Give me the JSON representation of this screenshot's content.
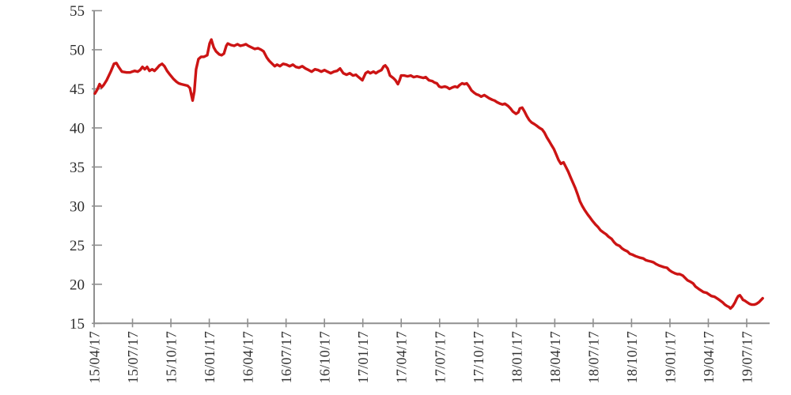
{
  "colors": {
    "line": "#cc1414",
    "axis": "#8f8f8f",
    "tick_label": "#2e2e2e",
    "background": "#ffffff"
  },
  "chart_data": {
    "type": "line",
    "title": "",
    "xlabel": "",
    "ylabel": "",
    "grid": false,
    "legend": "none",
    "x_axis": {
      "tick_labels": [
        "15/04/17",
        "15/07/17",
        "15/10/17",
        "16/01/17",
        "16/04/17",
        "16/07/17",
        "16/10/17",
        "17/01/17",
        "17/04/17",
        "17/07/17",
        "17/10/17",
        "18/01/17",
        "18/04/17",
        "18/07/17",
        "18/10/17",
        "19/01/17",
        "19/04/17",
        "19/07/17"
      ],
      "x_unit": "weeks since 2015-04-17",
      "weeks_per_tick": 13.09
    },
    "y_axis": {
      "min": 15,
      "max": 55,
      "tick_step": 5,
      "tick_labels": [
        "55",
        "50",
        "45",
        "40",
        "35",
        "30",
        "25",
        "20",
        "15"
      ]
    },
    "series": [
      {
        "name": "series-1",
        "color": "#cc1414",
        "points": [
          [
            0,
            44.4
          ],
          [
            0.8,
            44.9
          ],
          [
            1.6,
            45.6
          ],
          [
            2.3,
            45.2
          ],
          [
            3,
            45.5
          ],
          [
            4,
            46.1
          ],
          [
            5.4,
            47.2
          ],
          [
            6.5,
            48.2
          ],
          [
            7.3,
            48.3
          ],
          [
            8.1,
            47.8
          ],
          [
            9.2,
            47.2
          ],
          [
            10.8,
            47.1
          ],
          [
            12,
            47.1
          ],
          [
            12.7,
            47.2
          ],
          [
            13.5,
            47.3
          ],
          [
            14.6,
            47.2
          ],
          [
            15.4,
            47.4
          ],
          [
            16.2,
            47.8
          ],
          [
            17,
            47.5
          ],
          [
            17.8,
            47.8
          ],
          [
            18.6,
            47.3
          ],
          [
            19.5,
            47.5
          ],
          [
            20.3,
            47.3
          ],
          [
            21.1,
            47.6
          ],
          [
            22,
            48.0
          ],
          [
            22.9,
            48.2
          ],
          [
            23.7,
            47.9
          ],
          [
            24.6,
            47.3
          ],
          [
            25.6,
            46.8
          ],
          [
            26.7,
            46.3
          ],
          [
            27.8,
            45.9
          ],
          [
            28.6,
            45.7
          ],
          [
            29.4,
            45.6
          ],
          [
            30.5,
            45.5
          ],
          [
            31.6,
            45.4
          ],
          [
            32.4,
            45.1
          ],
          [
            32.9,
            44.2
          ],
          [
            33.3,
            43.5
          ],
          [
            33.9,
            44.7
          ],
          [
            34.5,
            47.5
          ],
          [
            35.3,
            48.8
          ],
          [
            36.2,
            49.1
          ],
          [
            37.2,
            49.1
          ],
          [
            38.3,
            49.3
          ],
          [
            39.1,
            50.8
          ],
          [
            39.7,
            51.3
          ],
          [
            40.5,
            50.3
          ],
          [
            41.3,
            49.8
          ],
          [
            42.4,
            49.4
          ],
          [
            43.2,
            49.3
          ],
          [
            44,
            49.5
          ],
          [
            44.8,
            50.5
          ],
          [
            45.3,
            50.8
          ],
          [
            46.4,
            50.6
          ],
          [
            47.5,
            50.5
          ],
          [
            48.6,
            50.7
          ],
          [
            49.6,
            50.5
          ],
          [
            50.7,
            50.6
          ],
          [
            51.5,
            50.7
          ],
          [
            52.3,
            50.5
          ],
          [
            53.4,
            50.3
          ],
          [
            54.5,
            50.1
          ],
          [
            55.6,
            50.2
          ],
          [
            56.7,
            50.0
          ],
          [
            57.5,
            49.8
          ],
          [
            58.6,
            49.0
          ],
          [
            59.4,
            48.6
          ],
          [
            60.2,
            48.3
          ],
          [
            61.3,
            47.9
          ],
          [
            62.1,
            48.1
          ],
          [
            63.1,
            47.9
          ],
          [
            64.2,
            48.2
          ],
          [
            65.3,
            48.1
          ],
          [
            66.4,
            47.9
          ],
          [
            67.5,
            48.1
          ],
          [
            68.5,
            47.8
          ],
          [
            69.6,
            47.7
          ],
          [
            70.7,
            47.9
          ],
          [
            71.8,
            47.6
          ],
          [
            72.9,
            47.4
          ],
          [
            73.9,
            47.2
          ],
          [
            75,
            47.5
          ],
          [
            76.1,
            47.4
          ],
          [
            77.2,
            47.2
          ],
          [
            78.3,
            47.4
          ],
          [
            79.3,
            47.2
          ],
          [
            80.4,
            47.0
          ],
          [
            81.5,
            47.2
          ],
          [
            82.6,
            47.3
          ],
          [
            83.6,
            47.6
          ],
          [
            84.7,
            47.0
          ],
          [
            85.8,
            46.8
          ],
          [
            86.9,
            47.0
          ],
          [
            88,
            46.7
          ],
          [
            89,
            46.8
          ],
          [
            89.9,
            46.5
          ],
          [
            91.2,
            46.1
          ],
          [
            92.3,
            47.0
          ],
          [
            93.1,
            47.2
          ],
          [
            93.9,
            47.0
          ],
          [
            95,
            47.2
          ],
          [
            95.8,
            47.0
          ],
          [
            96.6,
            47.2
          ],
          [
            97.7,
            47.4
          ],
          [
            98.5,
            47.9
          ],
          [
            99,
            48.0
          ],
          [
            99.8,
            47.6
          ],
          [
            100.6,
            46.7
          ],
          [
            101.7,
            46.4
          ],
          [
            102.5,
            46.1
          ],
          [
            103.3,
            45.6
          ],
          [
            103.9,
            46.1
          ],
          [
            104.4,
            46.7
          ],
          [
            105.5,
            46.7
          ],
          [
            106.6,
            46.6
          ],
          [
            107.7,
            46.7
          ],
          [
            108.7,
            46.5
          ],
          [
            109.8,
            46.6
          ],
          [
            110.9,
            46.5
          ],
          [
            112,
            46.4
          ],
          [
            112.8,
            46.5
          ],
          [
            113.9,
            46.1
          ],
          [
            115,
            46.0
          ],
          [
            115.8,
            45.8
          ],
          [
            116.6,
            45.7
          ],
          [
            117.4,
            45.3
          ],
          [
            118.2,
            45.2
          ],
          [
            119.3,
            45.3
          ],
          [
            120.1,
            45.2
          ],
          [
            120.9,
            45.0
          ],
          [
            122,
            45.2
          ],
          [
            122.8,
            45.3
          ],
          [
            123.6,
            45.2
          ],
          [
            124.4,
            45.5
          ],
          [
            125.2,
            45.7
          ],
          [
            126,
            45.6
          ],
          [
            126.8,
            45.7
          ],
          [
            127.6,
            45.3
          ],
          [
            128.4,
            44.8
          ],
          [
            129.3,
            44.5
          ],
          [
            130.1,
            44.3
          ],
          [
            130.9,
            44.2
          ],
          [
            131.7,
            44.0
          ],
          [
            132.8,
            44.2
          ],
          [
            133.6,
            44.0
          ],
          [
            134.4,
            43.8
          ],
          [
            135.5,
            43.6
          ],
          [
            136.3,
            43.5
          ],
          [
            137.1,
            43.3
          ],
          [
            138.2,
            43.1
          ],
          [
            139,
            43.0
          ],
          [
            139.8,
            43.1
          ],
          [
            140.9,
            42.8
          ],
          [
            141.7,
            42.5
          ],
          [
            142.5,
            42.1
          ],
          [
            143.6,
            41.8
          ],
          [
            144.4,
            42.0
          ],
          [
            144.9,
            42.5
          ],
          [
            145.7,
            42.6
          ],
          [
            146.5,
            42.1
          ],
          [
            147.3,
            41.5
          ],
          [
            148.1,
            41.0
          ],
          [
            148.9,
            40.7
          ],
          [
            149.8,
            40.5
          ],
          [
            150.6,
            40.3
          ],
          [
            151.6,
            40.0
          ],
          [
            152.5,
            39.8
          ],
          [
            153.3,
            39.4
          ],
          [
            154.1,
            38.8
          ],
          [
            154.9,
            38.3
          ],
          [
            155.7,
            37.8
          ],
          [
            156.5,
            37.3
          ],
          [
            157.3,
            36.6
          ],
          [
            158.1,
            35.9
          ],
          [
            158.9,
            35.4
          ],
          [
            159.8,
            35.6
          ],
          [
            160.6,
            35.0
          ],
          [
            161.4,
            34.4
          ],
          [
            162.2,
            33.7
          ],
          [
            163,
            33.0
          ],
          [
            163.8,
            32.3
          ],
          [
            164.6,
            31.5
          ],
          [
            165.4,
            30.6
          ],
          [
            166.2,
            30.0
          ],
          [
            167,
            29.5
          ],
          [
            168.1,
            28.9
          ],
          [
            168.9,
            28.5
          ],
          [
            169.7,
            28.1
          ],
          [
            170.8,
            27.6
          ],
          [
            171.6,
            27.3
          ],
          [
            172.4,
            26.9
          ],
          [
            173.5,
            26.6
          ],
          [
            174.3,
            26.4
          ],
          [
            175.1,
            26.1
          ],
          [
            176.2,
            25.8
          ],
          [
            177,
            25.4
          ],
          [
            177.8,
            25.1
          ],
          [
            178.9,
            24.9
          ],
          [
            179.7,
            24.6
          ],
          [
            180.5,
            24.4
          ],
          [
            181.6,
            24.2
          ],
          [
            182.4,
            23.9
          ],
          [
            183.2,
            23.8
          ],
          [
            184.3,
            23.6
          ],
          [
            185.1,
            23.5
          ],
          [
            185.9,
            23.4
          ],
          [
            187,
            23.3
          ],
          [
            187.8,
            23.1
          ],
          [
            188.6,
            23.0
          ],
          [
            189.7,
            22.9
          ],
          [
            190.5,
            22.8
          ],
          [
            191.3,
            22.6
          ],
          [
            192.4,
            22.4
          ],
          [
            193.2,
            22.3
          ],
          [
            194,
            22.2
          ],
          [
            195.1,
            22.1
          ],
          [
            195.9,
            21.8
          ],
          [
            196.7,
            21.6
          ],
          [
            197.8,
            21.4
          ],
          [
            198.6,
            21.3
          ],
          [
            199.4,
            21.3
          ],
          [
            200.5,
            21.1
          ],
          [
            201.3,
            20.8
          ],
          [
            202.1,
            20.5
          ],
          [
            203.2,
            20.3
          ],
          [
            204,
            20.1
          ],
          [
            204.8,
            19.7
          ],
          [
            205.9,
            19.4
          ],
          [
            206.7,
            19.2
          ],
          [
            207.5,
            19.0
          ],
          [
            208.6,
            18.9
          ],
          [
            209.4,
            18.7
          ],
          [
            210.2,
            18.5
          ],
          [
            211.3,
            18.4
          ],
          [
            212.1,
            18.2
          ],
          [
            212.9,
            18.0
          ],
          [
            214,
            17.7
          ],
          [
            214.8,
            17.4
          ],
          [
            215.6,
            17.2
          ],
          [
            216.2,
            17.1
          ],
          [
            216.7,
            16.9
          ],
          [
            217.5,
            17.2
          ],
          [
            218.3,
            17.7
          ],
          [
            218.9,
            18.2
          ],
          [
            219.4,
            18.5
          ],
          [
            219.9,
            18.6
          ],
          [
            220.5,
            18.3
          ],
          [
            221,
            18.0
          ],
          [
            221.6,
            17.9
          ],
          [
            222.4,
            17.7
          ],
          [
            223.2,
            17.5
          ],
          [
            224,
            17.4
          ],
          [
            224.8,
            17.4
          ],
          [
            225.6,
            17.5
          ],
          [
            226.4,
            17.7
          ],
          [
            227.2,
            18.0
          ],
          [
            227.7,
            18.2
          ]
        ]
      }
    ]
  }
}
